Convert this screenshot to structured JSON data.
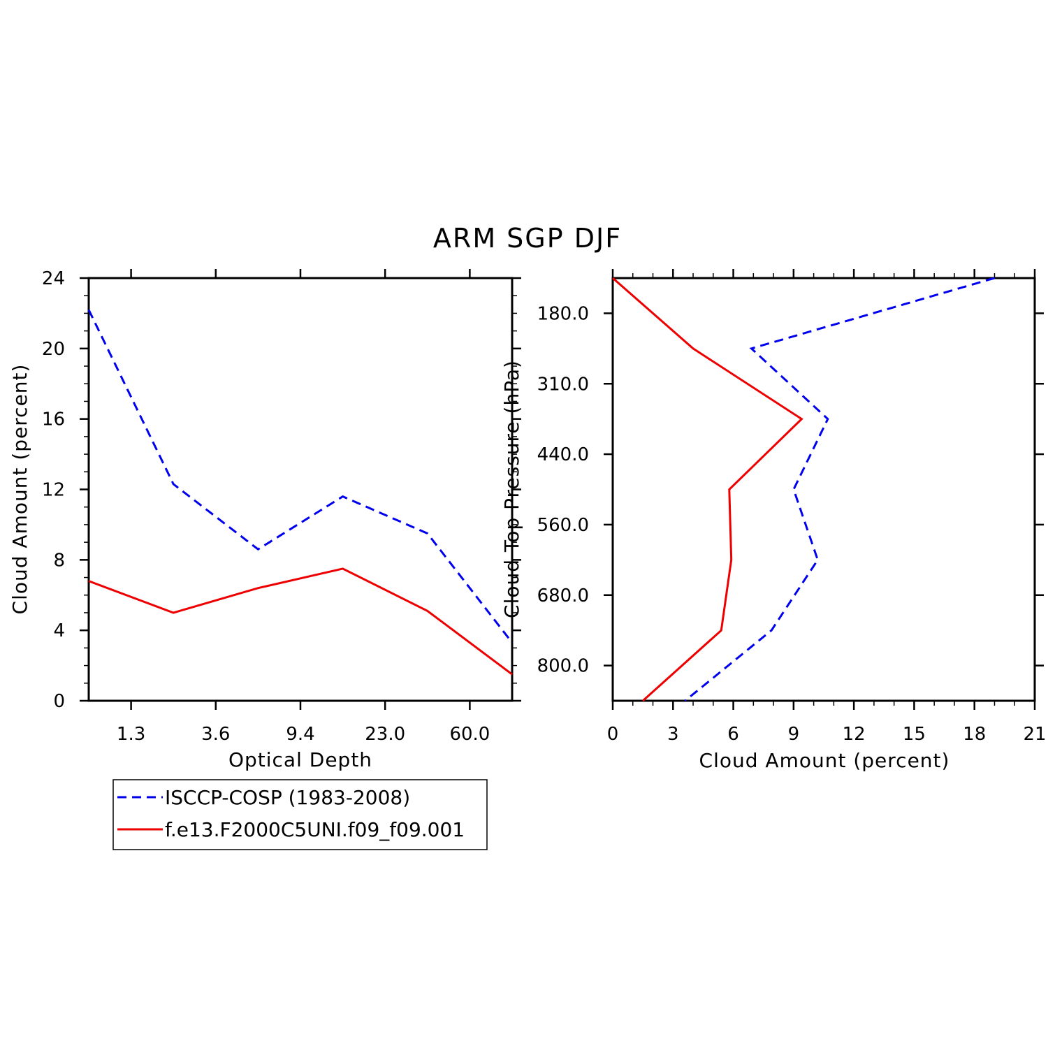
{
  "figure_title": "ARM SGP DJF",
  "chart_data": [
    {
      "type": "line",
      "xlabel": "Optical Depth",
      "ylabel": "Cloud Amount (percent)",
      "ylim": [
        0,
        24
      ],
      "yticks": [
        0,
        4,
        8,
        12,
        16,
        20,
        24
      ],
      "x_tick_labels": [
        "1.3",
        "3.6",
        "9.4",
        "23.0",
        "60.0"
      ],
      "x_bins": 6,
      "series": [
        {
          "name": "ISCCP-COSP (1983-2008)",
          "color": "#0000ee",
          "dash": "dashed",
          "values": [
            22.2,
            12.3,
            8.6,
            11.6,
            9.5,
            3.3
          ]
        },
        {
          "name": "f.e13.F2000C5UNI.f09_f09.001",
          "color": "#ee0000",
          "dash": "solid",
          "values": [
            6.8,
            5.0,
            6.4,
            7.5,
            5.1,
            1.5
          ]
        }
      ],
      "legend": "bottom-left",
      "grid": false
    },
    {
      "type": "line",
      "orientation": "horizontal",
      "xlabel": "Cloud Amount (percent)",
      "ylabel": "Cloud Top Pressure (hPa)",
      "xlim": [
        0,
        21
      ],
      "xticks": [
        0,
        3,
        6,
        9,
        12,
        15,
        18,
        21
      ],
      "y_tick_labels": [
        "180.0",
        "310.0",
        "440.0",
        "560.0",
        "680.0",
        "800.0"
      ],
      "y_levels": 7,
      "series": [
        {
          "name": "ISCCP-COSP (1983-2008)",
          "color": "#0000ee",
          "dash": "dashed",
          "values": [
            19.0,
            6.9,
            10.7,
            9.0,
            10.2,
            7.9,
            3.6
          ]
        },
        {
          "name": "f.e13.F2000C5UNI.f09_f09.001",
          "color": "#ee0000",
          "dash": "solid",
          "values": [
            0.0,
            4.0,
            9.4,
            5.8,
            5.9,
            5.4,
            1.5
          ]
        }
      ],
      "grid": false
    }
  ]
}
